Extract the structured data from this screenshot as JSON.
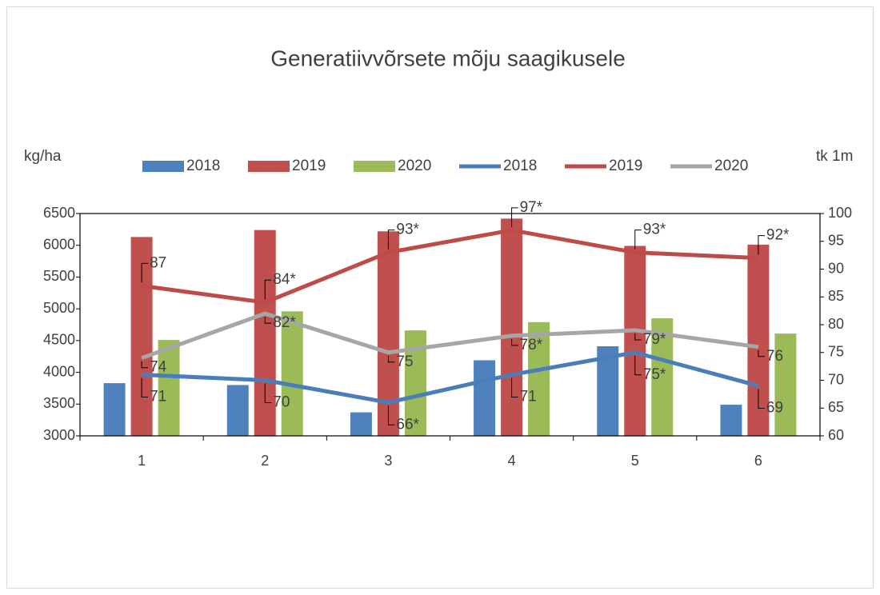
{
  "chart_data": {
    "type": "bar",
    "title": "Generatiivvõrsete mõju saagikusele",
    "ylabel": "kg/ha",
    "y2label": "tk 1m",
    "categories": [
      "1",
      "2",
      "3",
      "4",
      "5",
      "6"
    ],
    "series": [
      {
        "name": "2018",
        "type": "bar",
        "color": "#4f81bd",
        "values": [
          3830,
          3800,
          3370,
          4190,
          4410,
          3490
        ]
      },
      {
        "name": "2019",
        "type": "bar",
        "color": "#c0504d",
        "values": [
          6130,
          6240,
          6220,
          6420,
          5990,
          6010
        ]
      },
      {
        "name": "2020",
        "type": "bar",
        "color": "#9bbb59",
        "values": [
          4510,
          4960,
          4660,
          4790,
          4850,
          4610
        ]
      },
      {
        "name": "2018",
        "type": "line",
        "axis": "y2",
        "color": "#4a7ebb",
        "values": [
          71,
          70,
          66,
          71,
          75,
          69
        ],
        "value_labels": [
          "71",
          "70",
          "66*",
          "71",
          "75*",
          "69"
        ]
      },
      {
        "name": "2019",
        "type": "line",
        "axis": "y2",
        "color": "#be4b48",
        "values": [
          87,
          84,
          93,
          97,
          93,
          92
        ],
        "value_labels": [
          "87",
          "84*",
          "93*",
          "97*",
          "93*",
          "92*"
        ]
      },
      {
        "name": "2020",
        "type": "line",
        "axis": "y2",
        "color": "#a6a6a6",
        "values": [
          74,
          82,
          75,
          78,
          79,
          76
        ],
        "value_labels": [
          "74",
          "82*",
          "75",
          "78*",
          "79*",
          "76"
        ]
      }
    ],
    "ylim": [
      3000,
      6500
    ],
    "yticks": [
      3000,
      3500,
      4000,
      4500,
      5000,
      5500,
      6000,
      6500
    ],
    "y2lim": [
      60,
      100
    ],
    "y2ticks": [
      60,
      65,
      70,
      75,
      80,
      85,
      90,
      95,
      100
    ],
    "legend": "top"
  }
}
